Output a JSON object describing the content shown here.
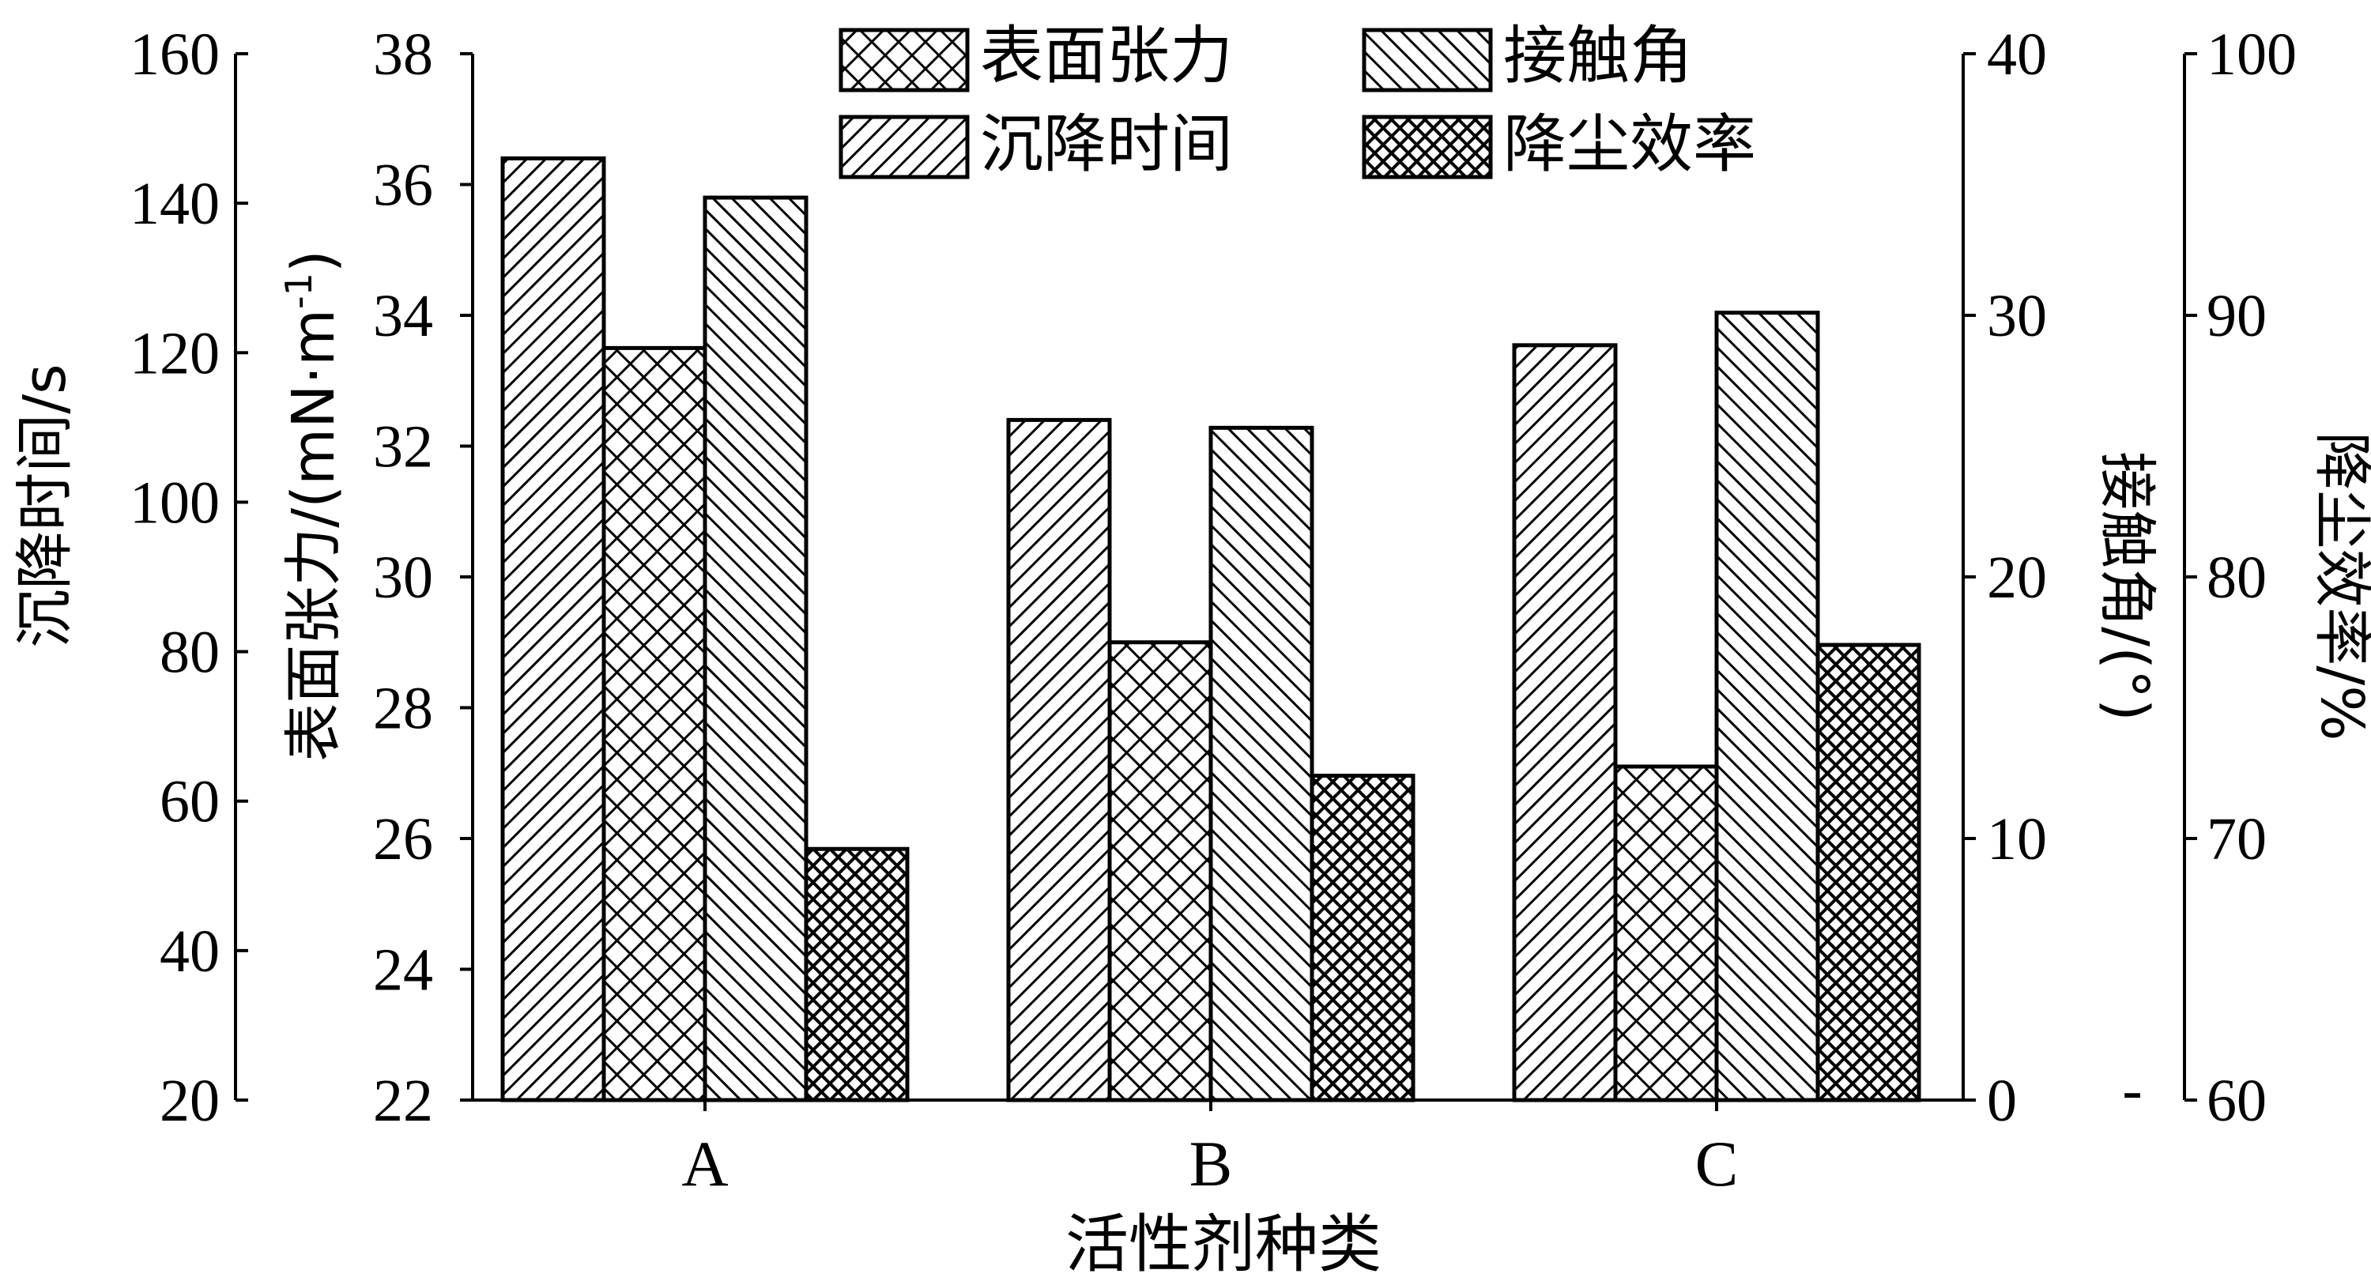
{
  "chart_data": {
    "type": "bar",
    "categories": [
      "A",
      "B",
      "C"
    ],
    "xlabel": "活性剂种类",
    "series": [
      {
        "name": "沉降时间",
        "axis": "settling",
        "pattern": "diag-right",
        "values": [
          146,
          111,
          121
        ]
      },
      {
        "name": "表面张力",
        "axis": "tension",
        "pattern": "crosshatch",
        "values": [
          33.5,
          29,
          27.1
        ]
      },
      {
        "name": "接触角",
        "axis": "angle",
        "pattern": "diag-left",
        "values": [
          34.5,
          25.7,
          30.1
        ]
      },
      {
        "name": "降尘效率",
        "axis": "efficiency",
        "pattern": "dense-cross",
        "values": [
          69.6,
          72.4,
          77.4
        ]
      }
    ],
    "axes": {
      "settling": {
        "label": "沉降时间/s",
        "range": [
          20,
          160
        ],
        "ticks": [
          "20",
          "40",
          "60",
          "80",
          "100",
          "120",
          "140",
          "160"
        ]
      },
      "tension": {
        "label_main": "表面张力/(mN·m",
        "label_sup": "-1",
        "label_end": ")",
        "range": [
          22,
          38
        ],
        "ticks": [
          "22",
          "24",
          "26",
          "28",
          "30",
          "32",
          "34",
          "36",
          "38"
        ]
      },
      "angle": {
        "label": "接触角/(°)",
        "range": [
          0,
          40
        ],
        "ticks": [
          "0",
          "10",
          "20",
          "30",
          "40"
        ]
      },
      "efficiency": {
        "label": "降尘效率/%",
        "range": [
          60,
          100
        ],
        "ticks": [
          "60",
          "70",
          "80",
          "90",
          "100"
        ]
      }
    },
    "legend": {
      "placement": "top-center",
      "order": [
        "表面张力",
        "接触角",
        "沉降时间",
        "降尘效率"
      ]
    },
    "stray_mark": "-"
  }
}
